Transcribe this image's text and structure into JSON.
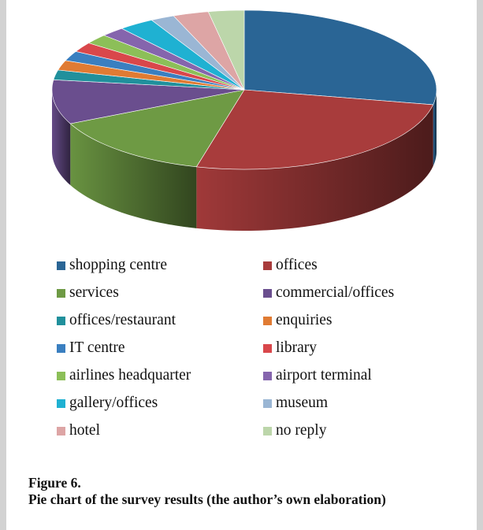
{
  "chart_data": {
    "type": "pie",
    "style": "3d",
    "categories": [
      "shopping centre",
      "offices",
      "services",
      "commercial/offices",
      "offices/restaurant",
      "enquiries",
      "IT centre",
      "library",
      "airlines headquarter",
      "airport terminal",
      "gallery/offices",
      "museum",
      "hotel",
      "no reply"
    ],
    "values": [
      28,
      26,
      14,
      9,
      2,
      2,
      2,
      2,
      2,
      2,
      3,
      2,
      3,
      3
    ],
    "colors": [
      "#2a6595",
      "#a83c3c",
      "#6e9a44",
      "#6a4e8e",
      "#20909c",
      "#e07b33",
      "#3a7fc0",
      "#d9474b",
      "#8cbf58",
      "#8565ad",
      "#1fb1d2",
      "#9ab6d4",
      "#dda5a5",
      "#bcd6aa"
    ],
    "legend_placement": "bottom"
  },
  "caption": {
    "label": "Figure 6.",
    "text": "Pie chart of the survey results (the author’s own elaboration)"
  }
}
